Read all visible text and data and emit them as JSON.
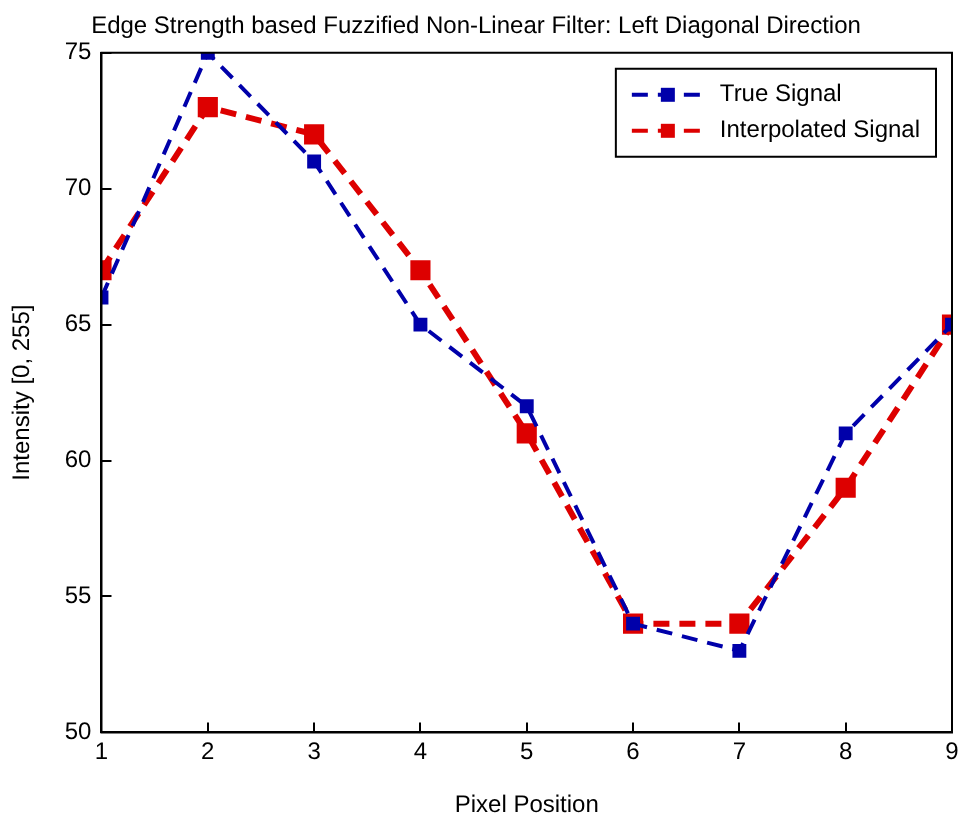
{
  "chart_data": {
    "type": "line",
    "title": "Edge Strength based Fuzzified Non-Linear Filter: Left Diagonal Direction",
    "xlabel": "Pixel Position",
    "ylabel": "Intensity [0, 255]",
    "x": [
      1,
      2,
      3,
      4,
      5,
      6,
      7,
      8,
      9
    ],
    "series": [
      {
        "name": "True Signal",
        "color": "#0000aa",
        "values": [
          66,
          75,
          71,
          65,
          62,
          54,
          53,
          61,
          65
        ]
      },
      {
        "name": "Interpolated Signal",
        "color": "#dd0000",
        "values": [
          67,
          73,
          72,
          67,
          61,
          54,
          54,
          59,
          65
        ]
      }
    ],
    "xlim": [
      1,
      9
    ],
    "xticks": [
      1,
      2,
      3,
      4,
      5,
      6,
      7,
      8,
      9
    ],
    "ylim": [
      50,
      75
    ],
    "yticks": [
      50,
      55,
      60,
      65,
      70,
      75
    ],
    "grid": false,
    "legend": "top right",
    "marker": "square",
    "line_style": "dashed"
  }
}
